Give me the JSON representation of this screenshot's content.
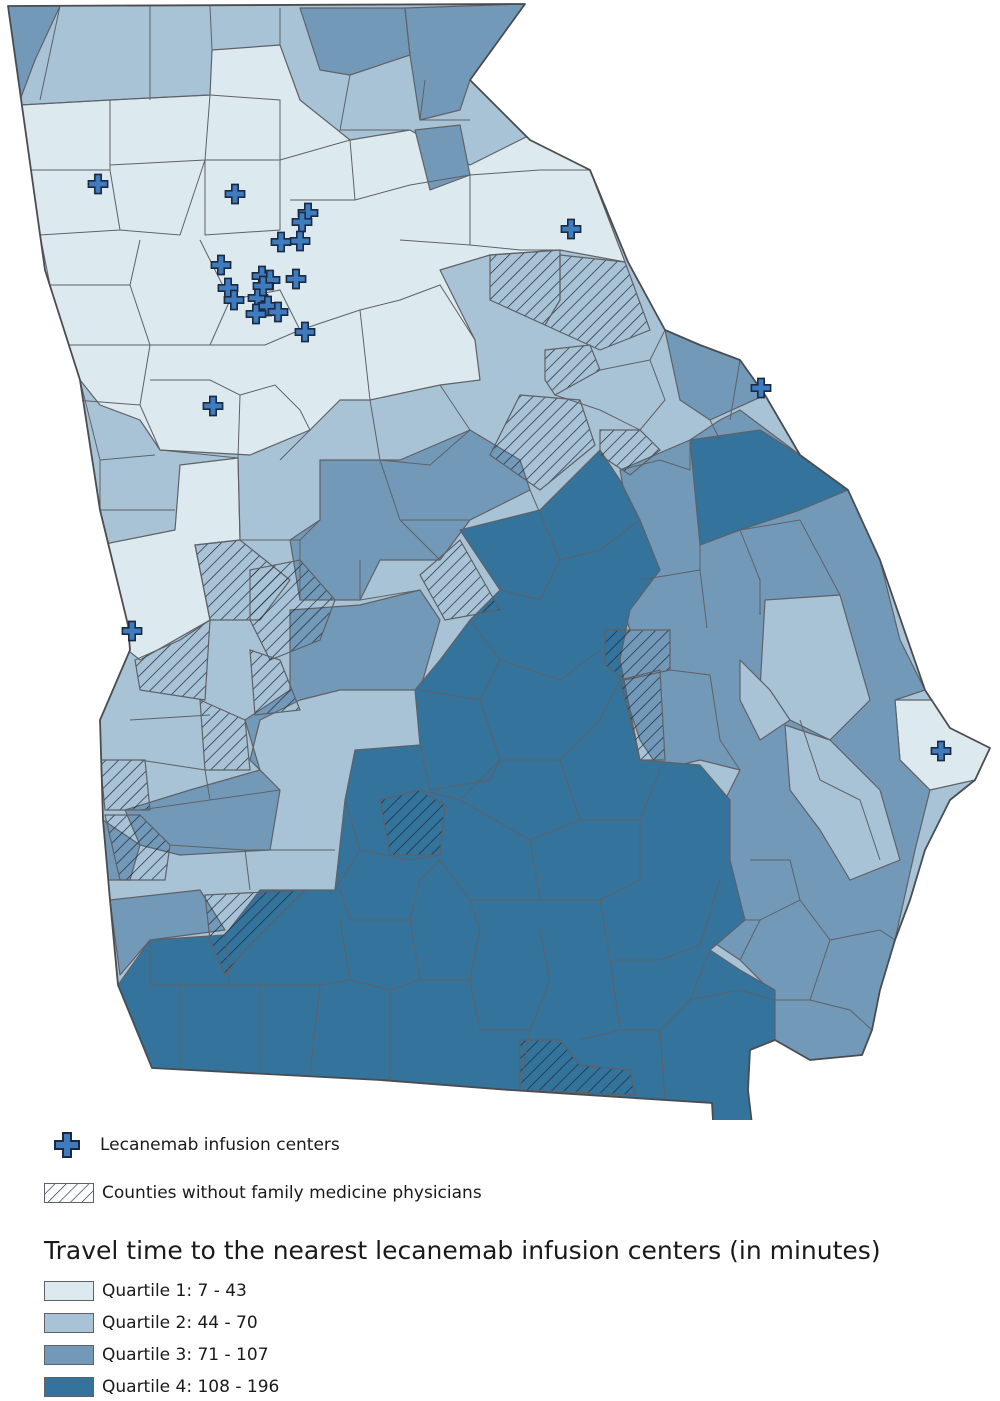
{
  "legend": {
    "marker_label": "Lecanemab infusion centers",
    "hatch_label": "Counties without family medicine physicians",
    "title": "Travel time to the nearest lecanemab infusion centers (in minutes)",
    "quartiles": [
      {
        "label": "Quartile 1: 7 - 43",
        "color": "#dce9ee"
      },
      {
        "label": "Quartile 2: 44 - 70",
        "color": "#a9c3d6"
      },
      {
        "label": "Quartile 3: 71 - 107",
        "color": "#7399b8"
      },
      {
        "label": "Quartile 4: 108 - 196",
        "color": "#33739c"
      }
    ]
  },
  "colors": {
    "county_border": "#5f6166",
    "marker_fill": "#3f7bbf",
    "marker_outline": "#1b2a40",
    "hatch_stroke": "#1b2a40"
  },
  "icons": {
    "marker": "plus-marker-icon",
    "hatch": "diagonal-hatch-icon"
  },
  "map": {
    "region": "Georgia (USA) counties",
    "infusion_center_count": 23
  }
}
